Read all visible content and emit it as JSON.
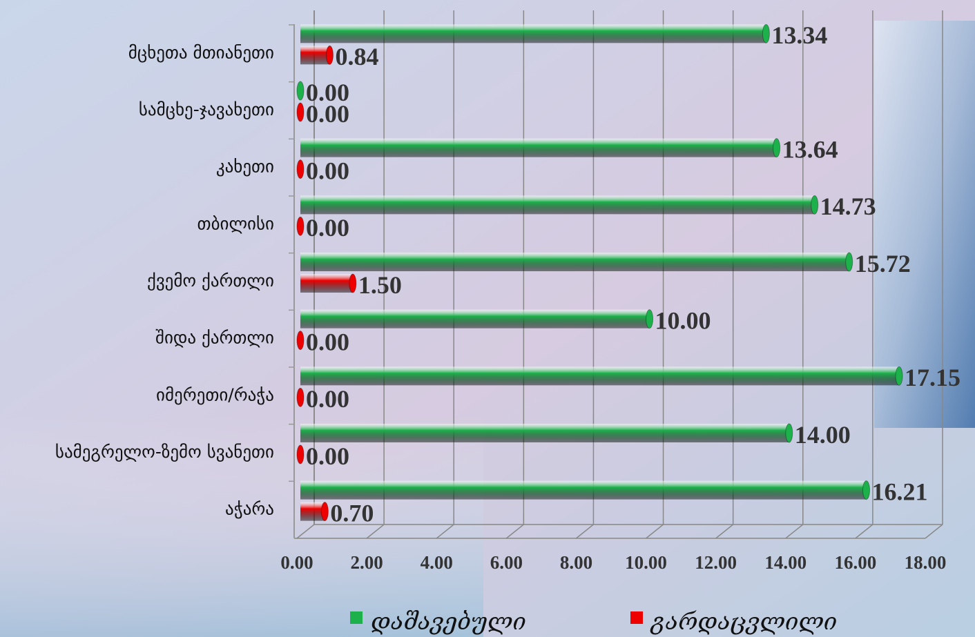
{
  "chart_data": {
    "type": "bar",
    "orientation": "horizontal",
    "categories": [
      "მცხეთა მთიანეთი",
      "სამცხე-ჯავახეთი",
      "კახეთი",
      "თბილისი",
      "ქვემო ქართლი",
      "შიდა ქართლი ",
      "იმერეთი/რაჭა",
      "სამეგრელო-ზემო სვანეთი",
      "აჭარა"
    ],
    "series": [
      {
        "name": "დაშავებული",
        "color": "#1db14b",
        "values": [
          13.34,
          0,
          13.64,
          14.73,
          15.72,
          10,
          17.15,
          14,
          16.21
        ],
        "value_labels": [
          "13.34",
          "0.00",
          "13.64",
          "14.73",
          "15.72",
          "10.00",
          "17.15",
          "14.00",
          "16.21"
        ]
      },
      {
        "name": "გარდაცვლილი",
        "color": "#ee0000",
        "values": [
          0.84,
          0,
          0,
          0,
          1.5,
          0,
          0,
          0,
          0.7
        ],
        "value_labels": [
          "0.84",
          "0.00",
          "0.00",
          "0.00",
          "1.50",
          "0.00",
          "0.00",
          "0.00",
          "0.70"
        ]
      }
    ],
    "xlim": [
      0,
      18
    ],
    "xticks": [
      {
        "value": 0,
        "label": "0.00"
      },
      {
        "value": 2,
        "label": "2.00"
      },
      {
        "value": 4,
        "label": "4.00"
      },
      {
        "value": 6,
        "label": "6.00"
      },
      {
        "value": 8,
        "label": "8.00"
      },
      {
        "value": 10,
        "label": "10.00"
      },
      {
        "value": 12,
        "label": "12.00"
      },
      {
        "value": 14,
        "label": "14.00"
      },
      {
        "value": 16,
        "label": "16.00"
      },
      {
        "value": 18,
        "label": "18.00"
      }
    ],
    "grid": true,
    "legend": "bottom"
  }
}
